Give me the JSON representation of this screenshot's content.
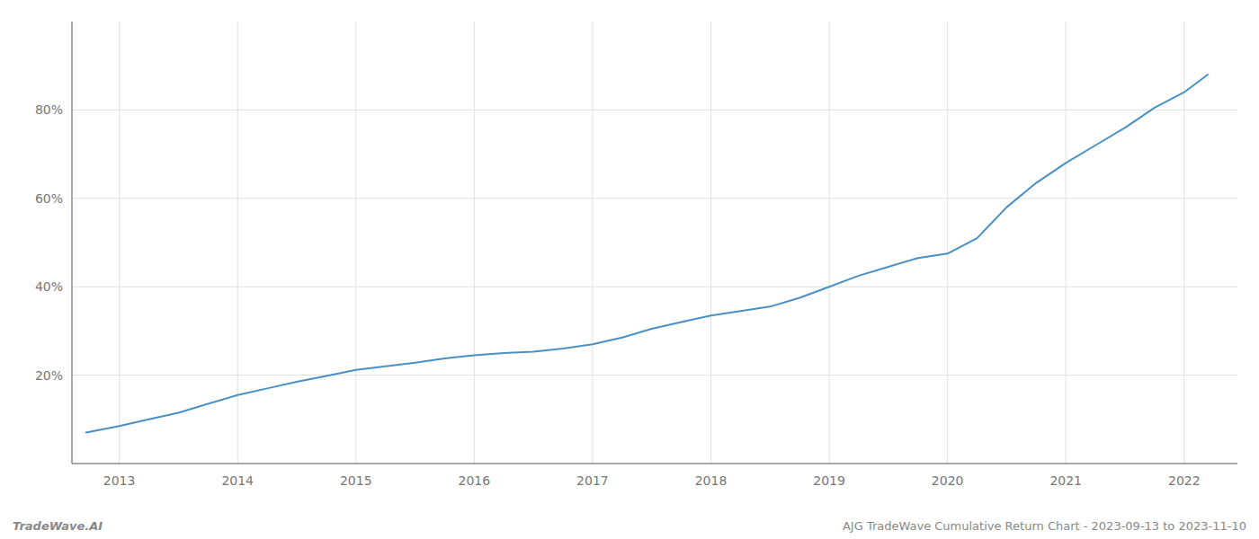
{
  "chart_data": {
    "type": "line",
    "x": [
      2012.72,
      2013.0,
      2013.25,
      2013.5,
      2013.75,
      2014.0,
      2014.25,
      2014.5,
      2014.75,
      2015.0,
      2015.25,
      2015.5,
      2015.75,
      2016.0,
      2016.25,
      2016.5,
      2016.75,
      2017.0,
      2017.25,
      2017.5,
      2017.75,
      2018.0,
      2018.25,
      2018.5,
      2018.75,
      2019.0,
      2019.25,
      2019.5,
      2019.75,
      2020.0,
      2020.25,
      2020.5,
      2020.75,
      2021.0,
      2021.25,
      2021.5,
      2021.75,
      2022.0,
      2022.2
    ],
    "values": [
      7.0,
      8.5,
      10.0,
      11.5,
      13.5,
      15.5,
      17.0,
      18.5,
      19.8,
      21.2,
      22.0,
      22.8,
      23.8,
      24.5,
      25.0,
      25.3,
      26.0,
      27.0,
      28.5,
      30.5,
      32.0,
      33.5,
      34.5,
      35.5,
      37.5,
      40.0,
      42.5,
      44.5,
      46.5,
      47.5,
      51.0,
      58.0,
      63.5,
      68.0,
      72.0,
      76.0,
      80.5,
      84.0,
      88.0
    ],
    "color": "#4A90C4",
    "xlim": [
      2012.6,
      2022.45
    ],
    "ylim": [
      0,
      100
    ],
    "xticks": [
      2013,
      2014,
      2015,
      2016,
      2017,
      2018,
      2019,
      2020,
      2021,
      2022
    ],
    "yticks": [
      {
        "value": 20,
        "label": "20%"
      },
      {
        "value": 40,
        "label": "40%"
      },
      {
        "value": 60,
        "label": "60%"
      },
      {
        "value": 80,
        "label": "80%"
      }
    ],
    "grid": true,
    "annotations": [
      "TradeWave.AI",
      "AJG TradeWave Cumulative Return Chart - 2023-09-13 to 2023-11-10"
    ]
  }
}
